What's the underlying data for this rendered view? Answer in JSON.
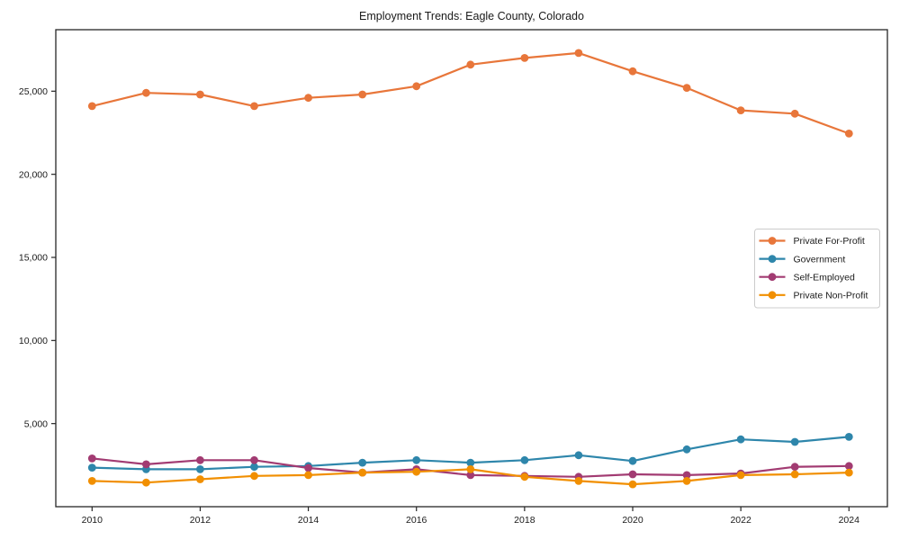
{
  "chart_data": {
    "type": "line",
    "title": "Employment Trends: Eagle County, Colorado",
    "xlabel": "",
    "ylabel": "",
    "x": [
      2010,
      2011,
      2012,
      2013,
      2014,
      2015,
      2016,
      2017,
      2018,
      2019,
      2020,
      2021,
      2022,
      2023,
      2024
    ],
    "x_tick_labels": [
      "2010",
      "2012",
      "2014",
      "2016",
      "2018",
      "2020",
      "2022",
      "2024"
    ],
    "y_ticks": [
      5000,
      10000,
      15000,
      20000,
      25000
    ],
    "y_tick_labels": [
      "5,000",
      "10,000",
      "15,000",
      "20,000",
      "25,000"
    ],
    "ylim": [
      0,
      28700
    ],
    "grid": false,
    "legend_position": "center-right",
    "series": [
      {
        "name": "Private For-Profit",
        "color": "#e8763a",
        "values": [
          24100,
          24900,
          24800,
          24100,
          24600,
          24800,
          25300,
          26600,
          27000,
          27300,
          26200,
          25200,
          23850,
          23650,
          22450
        ]
      },
      {
        "name": "Government",
        "color": "#2e86ab",
        "values": [
          2350,
          2250,
          2250,
          2400,
          2450,
          2650,
          2800,
          2650,
          2800,
          3100,
          2750,
          3450,
          4050,
          3900,
          4200
        ]
      },
      {
        "name": "Self-Employed",
        "color": "#a23b72",
        "values": [
          2900,
          2550,
          2800,
          2800,
          2330,
          2050,
          2250,
          1900,
          1850,
          1800,
          1950,
          1900,
          2000,
          2400,
          2450
        ]
      },
      {
        "name": "Private Non-Profit",
        "color": "#f18f01",
        "values": [
          1550,
          1450,
          1650,
          1850,
          1900,
          2050,
          2100,
          2250,
          1800,
          1550,
          1350,
          1550,
          1900,
          1950,
          2050
        ]
      }
    ],
    "colors": {
      "axis": "#262626",
      "tick_text": "#1a1a1a",
      "legend_border": "#cccccc",
      "background": "#ffffff"
    }
  }
}
